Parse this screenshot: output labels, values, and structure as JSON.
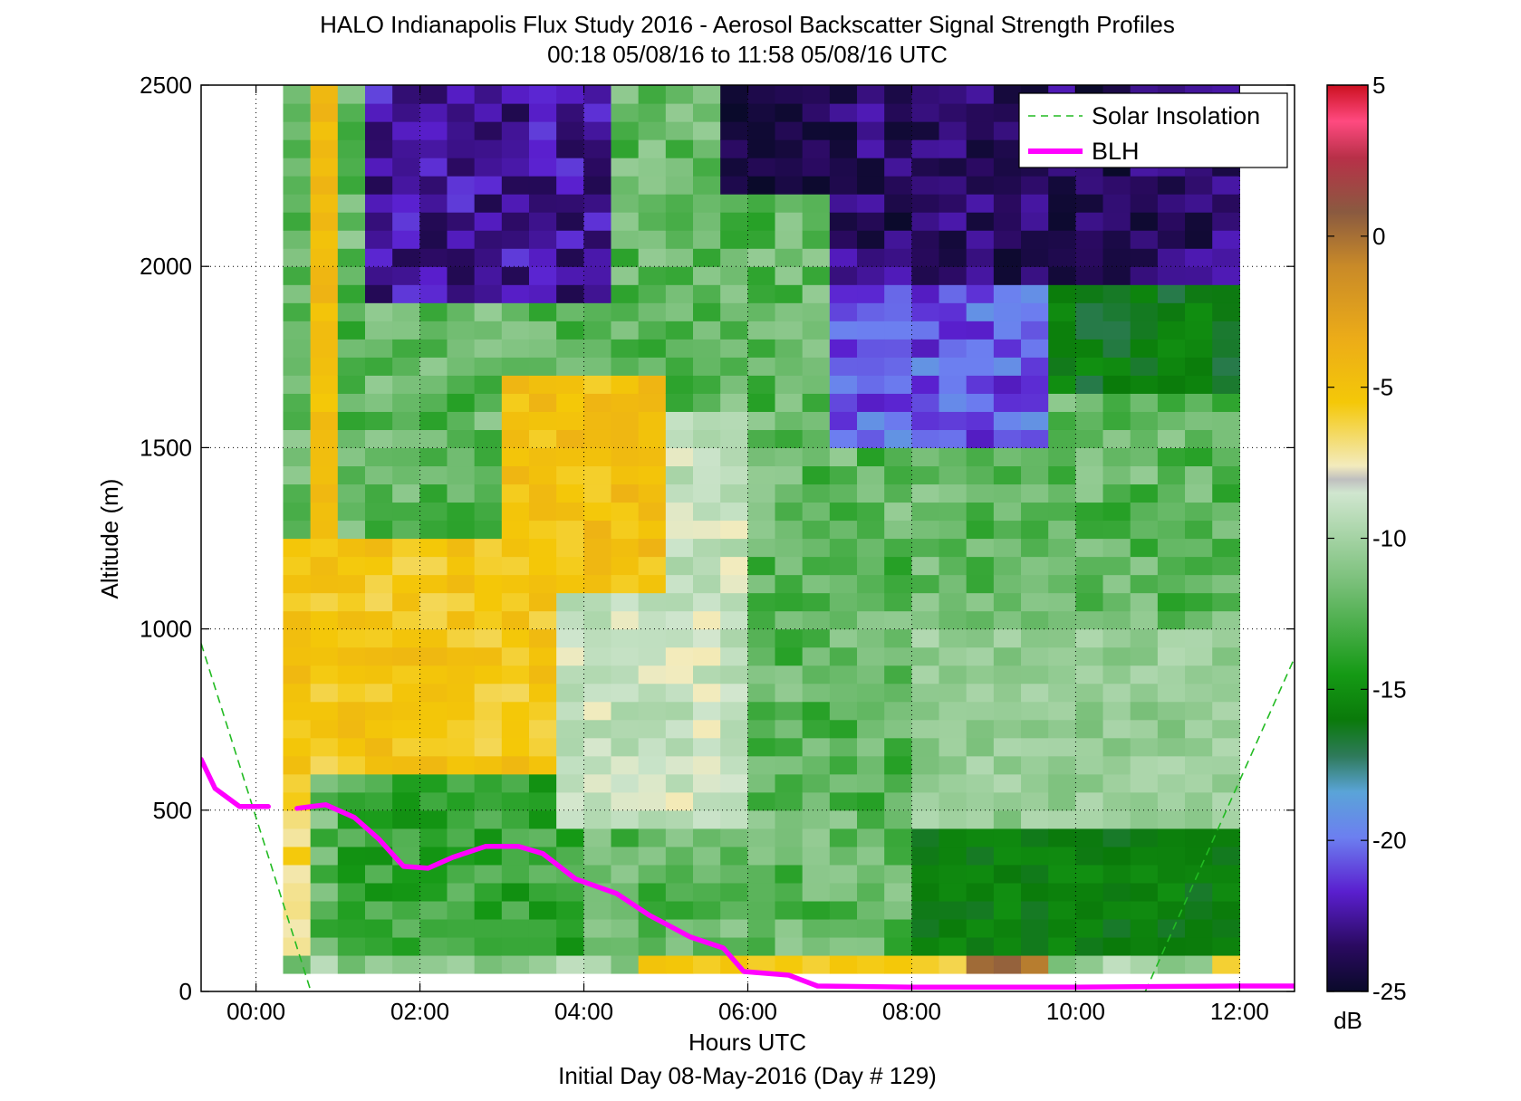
{
  "chart_data": {
    "type": "heatmap",
    "title": "HALO Indianapolis Flux Study 2016 - Aerosol Backscatter Signal Strength Profiles",
    "subtitle": "00:18 05/08/16 to 11:58 05/08/16  UTC",
    "xlabel": "Hours UTC",
    "xlabel2": "Initial Day 08-May-2016 (Day # 129)",
    "ylabel": "Altitude (m)",
    "xlim": [
      -0.67,
      12.67
    ],
    "ylim": [
      0,
      2500
    ],
    "x_ticks": [
      0,
      2,
      4,
      6,
      8,
      10,
      12
    ],
    "x_tick_labels": [
      "00:00",
      "02:00",
      "04:00",
      "06:00",
      "08:00",
      "10:00",
      "12:00"
    ],
    "y_ticks": [
      0,
      500,
      1000,
      1500,
      2000,
      2500
    ],
    "y_tick_labels": [
      "0",
      "500",
      "1000",
      "1500",
      "2000",
      "2500"
    ],
    "grid": true,
    "legend_position": "top-right",
    "colorbar": {
      "label": "dB",
      "range": [
        -25,
        5
      ],
      "ticks": [
        5,
        0,
        -5,
        -10,
        -15,
        -20,
        -25
      ],
      "tick_labels": [
        "5",
        "0",
        "-5",
        "-10",
        "-15",
        "-20",
        "-25"
      ]
    },
    "heatmap": {
      "x_start": 0.33,
      "x_end": 12.0,
      "y_start": 50,
      "y_end": 2500,
      "n_cols": 35,
      "n_rows": 49,
      "value_units": "dB"
    },
    "series": [
      {
        "name": "Solar Insolation",
        "color": "#22bb22",
        "style": "dashed",
        "segments": [
          [
            [
              -0.67,
              960
            ],
            [
              0.67,
              0
            ]
          ],
          [
            [
              10.85,
              0
            ],
            [
              12.67,
              920
            ]
          ]
        ]
      },
      {
        "name": "BLH",
        "color": "#ff00ff",
        "style": "solid",
        "segments": [
          [
            [
              -0.67,
              640
            ],
            [
              -0.5,
              560
            ],
            [
              -0.2,
              510
            ],
            [
              0.15,
              510
            ]
          ],
          [
            [
              0.5,
              505
            ],
            [
              0.85,
              515
            ],
            [
              1.2,
              480
            ],
            [
              1.5,
              420
            ],
            [
              1.8,
              345
            ],
            [
              2.1,
              340
            ],
            [
              2.4,
              370
            ],
            [
              2.8,
              400
            ],
            [
              3.2,
              400
            ],
            [
              3.5,
              380
            ],
            [
              3.9,
              310
            ],
            [
              4.4,
              270
            ],
            [
              4.8,
              210
            ],
            [
              5.3,
              150
            ],
            [
              5.7,
              120
            ],
            [
              5.95,
              55
            ],
            [
              6.5,
              45
            ],
            [
              6.85,
              15
            ],
            [
              8.0,
              12
            ],
            [
              10.0,
              12
            ],
            [
              12.0,
              15
            ],
            [
              12.67,
              15
            ]
          ]
        ]
      }
    ]
  }
}
